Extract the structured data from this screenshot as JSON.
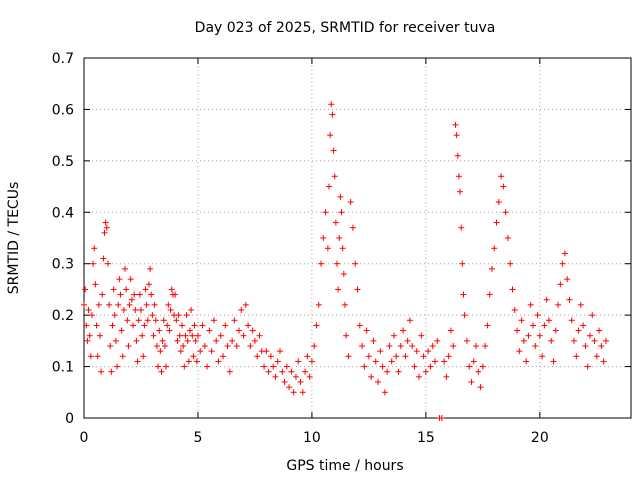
{
  "chart_data": {
    "type": "scatter",
    "title": "Day 023 of 2025, SRMTID for receiver tuva",
    "xlabel": "GPS time / hours",
    "ylabel": "SRMTID / TECUs",
    "xlim": [
      0,
      24
    ],
    "ylim": [
      0,
      0.7
    ],
    "xticks": [
      0,
      5,
      10,
      15,
      20
    ],
    "yticks": [
      0,
      0.1,
      0.2,
      0.3,
      0.4,
      0.5,
      0.6,
      0.7
    ],
    "grid": true,
    "marker": "plus",
    "colors": {
      "series": "#ff0000",
      "grid": "#a0a0a0",
      "axis": "#000000"
    },
    "series": [
      {
        "name": "SRMTID",
        "points": [
          [
            0.0,
            0.22
          ],
          [
            0.05,
            0.25
          ],
          [
            0.1,
            0.18
          ],
          [
            0.15,
            0.15
          ],
          [
            0.2,
            0.21
          ],
          [
            0.25,
            0.16
          ],
          [
            0.3,
            0.12
          ],
          [
            0.35,
            0.2
          ],
          [
            0.4,
            0.3
          ],
          [
            0.45,
            0.33
          ],
          [
            0.5,
            0.26
          ],
          [
            0.55,
            0.18
          ],
          [
            0.6,
            0.12
          ],
          [
            0.65,
            0.22
          ],
          [
            0.7,
            0.16
          ],
          [
            0.75,
            0.09
          ],
          [
            0.8,
            0.24
          ],
          [
            0.85,
            0.31
          ],
          [
            0.9,
            0.36
          ],
          [
            0.95,
            0.38
          ],
          [
            1.0,
            0.37
          ],
          [
            1.05,
            0.3
          ],
          [
            1.1,
            0.22
          ],
          [
            1.15,
            0.14
          ],
          [
            1.2,
            0.09
          ],
          [
            1.25,
            0.18
          ],
          [
            1.3,
            0.25
          ],
          [
            1.35,
            0.2
          ],
          [
            1.4,
            0.15
          ],
          [
            1.45,
            0.1
          ],
          [
            1.5,
            0.22
          ],
          [
            1.55,
            0.27
          ],
          [
            1.6,
            0.24
          ],
          [
            1.65,
            0.17
          ],
          [
            1.7,
            0.12
          ],
          [
            1.75,
            0.21
          ],
          [
            1.8,
            0.29
          ],
          [
            1.85,
            0.25
          ],
          [
            1.9,
            0.19
          ],
          [
            1.95,
            0.14
          ],
          [
            2.0,
            0.22
          ],
          [
            2.05,
            0.27
          ],
          [
            2.1,
            0.23
          ],
          [
            2.15,
            0.18
          ],
          [
            2.2,
            0.24
          ],
          [
            2.25,
            0.21
          ],
          [
            2.3,
            0.15
          ],
          [
            2.35,
            0.11
          ],
          [
            2.4,
            0.19
          ],
          [
            2.45,
            0.24
          ],
          [
            2.5,
            0.21
          ],
          [
            2.55,
            0.16
          ],
          [
            2.6,
            0.12
          ],
          [
            2.65,
            0.18
          ],
          [
            2.7,
            0.25
          ],
          [
            2.75,
            0.22
          ],
          [
            2.8,
            0.19
          ],
          [
            2.85,
            0.26
          ],
          [
            2.9,
            0.29
          ],
          [
            2.95,
            0.24
          ],
          [
            3.0,
            0.2
          ],
          [
            3.05,
            0.16
          ],
          [
            3.1,
            0.22
          ],
          [
            3.15,
            0.19
          ],
          [
            3.2,
            0.14
          ],
          [
            3.25,
            0.1
          ],
          [
            3.3,
            0.17
          ],
          [
            3.35,
            0.13
          ],
          [
            3.4,
            0.09
          ],
          [
            3.45,
            0.15
          ],
          [
            3.5,
            0.19
          ],
          [
            3.55,
            0.14
          ],
          [
            3.6,
            0.1
          ],
          [
            3.65,
            0.18
          ],
          [
            3.7,
            0.22
          ],
          [
            3.75,
            0.17
          ],
          [
            3.8,
            0.21
          ],
          [
            3.85,
            0.25
          ],
          [
            3.9,
            0.24
          ],
          [
            3.95,
            0.2
          ],
          [
            4.0,
            0.24
          ],
          [
            4.05,
            0.19
          ],
          [
            4.1,
            0.15
          ],
          [
            4.15,
            0.2
          ],
          [
            4.2,
            0.16
          ],
          [
            4.25,
            0.13
          ],
          [
            4.3,
            0.18
          ],
          [
            4.35,
            0.14
          ],
          [
            4.4,
            0.1
          ],
          [
            4.45,
            0.16
          ],
          [
            4.5,
            0.2
          ],
          [
            4.55,
            0.15
          ],
          [
            4.6,
            0.11
          ],
          [
            4.65,
            0.17
          ],
          [
            4.7,
            0.21
          ],
          [
            4.75,
            0.16
          ],
          [
            4.8,
            0.12
          ],
          [
            4.85,
            0.18
          ],
          [
            4.9,
            0.15
          ],
          [
            4.95,
            0.11
          ],
          [
            5.0,
            0.16
          ],
          [
            5.1,
            0.13
          ],
          [
            5.2,
            0.18
          ],
          [
            5.3,
            0.14
          ],
          [
            5.4,
            0.1
          ],
          [
            5.5,
            0.17
          ],
          [
            5.6,
            0.13
          ],
          [
            5.7,
            0.19
          ],
          [
            5.8,
            0.15
          ],
          [
            5.9,
            0.11
          ],
          [
            6.0,
            0.16
          ],
          [
            6.1,
            0.12
          ],
          [
            6.2,
            0.18
          ],
          [
            6.3,
            0.14
          ],
          [
            6.4,
            0.09
          ],
          [
            6.5,
            0.15
          ],
          [
            6.6,
            0.19
          ],
          [
            6.7,
            0.14
          ],
          [
            6.8,
            0.17
          ],
          [
            6.9,
            0.21
          ],
          [
            7.0,
            0.16
          ],
          [
            7.1,
            0.22
          ],
          [
            7.2,
            0.18
          ],
          [
            7.3,
            0.14
          ],
          [
            7.4,
            0.17
          ],
          [
            7.5,
            0.15
          ],
          [
            7.6,
            0.12
          ],
          [
            7.7,
            0.16
          ],
          [
            7.8,
            0.13
          ],
          [
            7.9,
            0.1
          ],
          [
            8.0,
            0.13
          ],
          [
            8.1,
            0.09
          ],
          [
            8.2,
            0.12
          ],
          [
            8.3,
            0.1
          ],
          [
            8.4,
            0.08
          ],
          [
            8.5,
            0.11
          ],
          [
            8.6,
            0.13
          ],
          [
            8.7,
            0.09
          ],
          [
            8.8,
            0.07
          ],
          [
            8.9,
            0.1
          ],
          [
            9.0,
            0.06
          ],
          [
            9.1,
            0.09
          ],
          [
            9.2,
            0.05
          ],
          [
            9.3,
            0.08
          ],
          [
            9.4,
            0.11
          ],
          [
            9.5,
            0.07
          ],
          [
            9.6,
            0.05
          ],
          [
            9.7,
            0.09
          ],
          [
            9.8,
            0.12
          ],
          [
            9.9,
            0.08
          ],
          [
            10.0,
            0.11
          ],
          [
            10.1,
            0.14
          ],
          [
            10.2,
            0.18
          ],
          [
            10.3,
            0.22
          ],
          [
            10.4,
            0.3
          ],
          [
            10.5,
            0.35
          ],
          [
            10.6,
            0.4
          ],
          [
            10.7,
            0.33
          ],
          [
            10.75,
            0.45
          ],
          [
            10.8,
            0.55
          ],
          [
            10.85,
            0.61
          ],
          [
            10.9,
            0.59
          ],
          [
            10.95,
            0.52
          ],
          [
            11.0,
            0.47
          ],
          [
            11.05,
            0.38
          ],
          [
            11.1,
            0.3
          ],
          [
            11.15,
            0.25
          ],
          [
            11.2,
            0.35
          ],
          [
            11.25,
            0.43
          ],
          [
            11.3,
            0.4
          ],
          [
            11.35,
            0.33
          ],
          [
            11.4,
            0.28
          ],
          [
            11.45,
            0.22
          ],
          [
            11.5,
            0.16
          ],
          [
            11.6,
            0.12
          ],
          [
            11.7,
            0.42
          ],
          [
            11.8,
            0.37
          ],
          [
            11.9,
            0.3
          ],
          [
            12.0,
            0.25
          ],
          [
            12.1,
            0.18
          ],
          [
            12.2,
            0.14
          ],
          [
            12.3,
            0.1
          ],
          [
            12.4,
            0.17
          ],
          [
            12.5,
            0.12
          ],
          [
            12.6,
            0.08
          ],
          [
            12.7,
            0.15
          ],
          [
            12.8,
            0.11
          ],
          [
            12.9,
            0.07
          ],
          [
            13.0,
            0.13
          ],
          [
            13.1,
            0.1
          ],
          [
            13.2,
            0.05
          ],
          [
            13.3,
            0.09
          ],
          [
            13.4,
            0.14
          ],
          [
            13.5,
            0.11
          ],
          [
            13.6,
            0.16
          ],
          [
            13.7,
            0.12
          ],
          [
            13.8,
            0.09
          ],
          [
            13.9,
            0.14
          ],
          [
            14.0,
            0.17
          ],
          [
            14.1,
            0.12
          ],
          [
            14.2,
            0.15
          ],
          [
            14.3,
            0.19
          ],
          [
            14.4,
            0.14
          ],
          [
            14.5,
            0.1
          ],
          [
            14.6,
            0.13
          ],
          [
            14.7,
            0.08
          ],
          [
            14.8,
            0.16
          ],
          [
            14.9,
            0.12
          ],
          [
            15.0,
            0.09
          ],
          [
            15.1,
            0.13
          ],
          [
            15.2,
            0.1
          ],
          [
            15.3,
            0.14
          ],
          [
            15.4,
            0.11
          ],
          [
            15.5,
            0.15
          ],
          [
            15.6,
            0.0
          ],
          [
            15.7,
            0.0
          ],
          [
            15.8,
            0.11
          ],
          [
            15.9,
            0.08
          ],
          [
            16.0,
            0.12
          ],
          [
            16.1,
            0.17
          ],
          [
            16.2,
            0.14
          ],
          [
            16.3,
            0.57
          ],
          [
            16.35,
            0.55
          ],
          [
            16.4,
            0.51
          ],
          [
            16.45,
            0.47
          ],
          [
            16.5,
            0.44
          ],
          [
            16.55,
            0.37
          ],
          [
            16.6,
            0.3
          ],
          [
            16.65,
            0.24
          ],
          [
            16.7,
            0.2
          ],
          [
            16.8,
            0.15
          ],
          [
            16.9,
            0.1
          ],
          [
            17.0,
            0.07
          ],
          [
            17.1,
            0.11
          ],
          [
            17.2,
            0.14
          ],
          [
            17.3,
            0.09
          ],
          [
            17.4,
            0.06
          ],
          [
            17.5,
            0.1
          ],
          [
            17.6,
            0.14
          ],
          [
            17.7,
            0.18
          ],
          [
            17.8,
            0.24
          ],
          [
            17.9,
            0.29
          ],
          [
            18.0,
            0.33
          ],
          [
            18.1,
            0.38
          ],
          [
            18.2,
            0.42
          ],
          [
            18.3,
            0.47
          ],
          [
            18.4,
            0.45
          ],
          [
            18.5,
            0.4
          ],
          [
            18.6,
            0.35
          ],
          [
            18.7,
            0.3
          ],
          [
            18.8,
            0.25
          ],
          [
            18.9,
            0.21
          ],
          [
            19.0,
            0.17
          ],
          [
            19.1,
            0.13
          ],
          [
            19.2,
            0.19
          ],
          [
            19.3,
            0.15
          ],
          [
            19.4,
            0.11
          ],
          [
            19.5,
            0.16
          ],
          [
            19.6,
            0.22
          ],
          [
            19.7,
            0.18
          ],
          [
            19.8,
            0.14
          ],
          [
            19.9,
            0.2
          ],
          [
            20.0,
            0.16
          ],
          [
            20.1,
            0.12
          ],
          [
            20.2,
            0.18
          ],
          [
            20.3,
            0.23
          ],
          [
            20.4,
            0.19
          ],
          [
            20.5,
            0.15
          ],
          [
            20.6,
            0.11
          ],
          [
            20.7,
            0.17
          ],
          [
            20.8,
            0.22
          ],
          [
            20.9,
            0.26
          ],
          [
            21.0,
            0.3
          ],
          [
            21.1,
            0.32
          ],
          [
            21.2,
            0.27
          ],
          [
            21.3,
            0.23
          ],
          [
            21.4,
            0.19
          ],
          [
            21.5,
            0.15
          ],
          [
            21.6,
            0.12
          ],
          [
            21.7,
            0.17
          ],
          [
            21.8,
            0.22
          ],
          [
            21.9,
            0.18
          ],
          [
            22.0,
            0.14
          ],
          [
            22.1,
            0.1
          ],
          [
            22.2,
            0.16
          ],
          [
            22.3,
            0.2
          ],
          [
            22.4,
            0.15
          ],
          [
            22.5,
            0.12
          ],
          [
            22.6,
            0.17
          ],
          [
            22.7,
            0.14
          ],
          [
            22.8,
            0.11
          ],
          [
            22.9,
            0.15
          ]
        ]
      }
    ]
  }
}
